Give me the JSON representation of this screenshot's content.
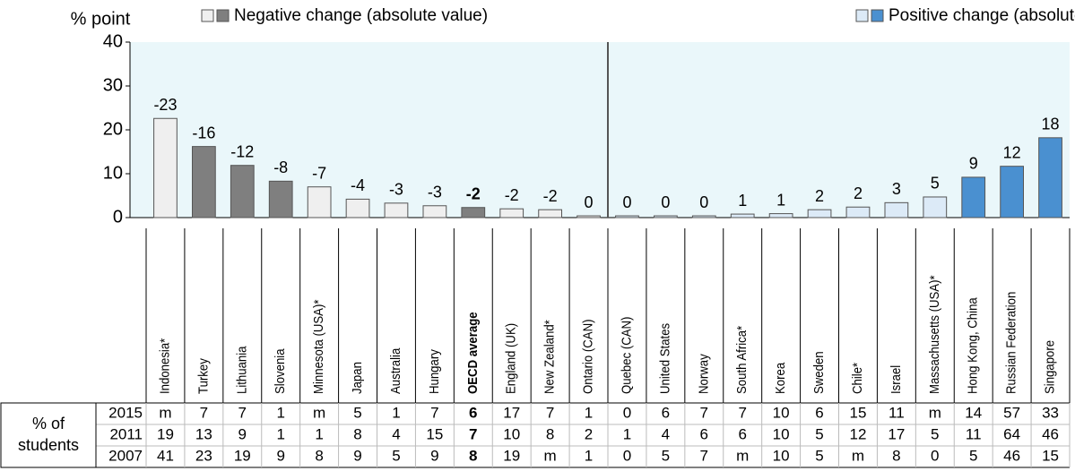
{
  "chart_data": {
    "type": "bar",
    "y_label": "% point",
    "legend": [
      {
        "name": "Negative change (absolute value)",
        "colors": [
          "#efefef",
          "#7f7f7f"
        ]
      },
      {
        "name": "Positive change (absolute value)",
        "colors": [
          "#dceaf7",
          "#4a90d0"
        ]
      }
    ],
    "categories": [
      "Indonesia*",
      "Turkey",
      "Lithuania",
      "Slovenia",
      "Minnesota (USA)*",
      "Japan",
      "Australia",
      "Hungary",
      "OECD average",
      "England (UK)",
      "New Zealand*",
      "Ontario (CAN)",
      "Quebec (CAN)",
      "United States",
      "Norway",
      "South Africa*",
      "Korea",
      "Sweden",
      "Chile*",
      "Israel",
      "Massachusetts (USA)*",
      "Hong Kong, China",
      "Russian Federation",
      "Singapore"
    ],
    "values": [
      22.6,
      16.2,
      11.9,
      8.3,
      7.0,
      4.2,
      3.3,
      2.7,
      2.3,
      2.0,
      1.8,
      0.4,
      0.4,
      0.4,
      0.4,
      0.8,
      0.9,
      1.8,
      2.4,
      3.4,
      4.7,
      9.2,
      11.7,
      18.2
    ],
    "value_labels": [
      "-23",
      "-16",
      "-12",
      "-8",
      "-7",
      "-4",
      "-3",
      "-3",
      "-2",
      "-2",
      "-2",
      "0",
      "0",
      "0",
      "0",
      "1",
      "1",
      "2",
      "2",
      "3",
      "5",
      "9",
      "12",
      "18"
    ],
    "colors": [
      "#efefef",
      "#7f7f7f",
      "#7f7f7f",
      "#7f7f7f",
      "#efefef",
      "#efefef",
      "#efefef",
      "#efefef",
      "#7f7f7f",
      "#efefef",
      "#efefef",
      "#efefef",
      "#dceaf7",
      "#dceaf7",
      "#dceaf7",
      "#dceaf7",
      "#dceaf7",
      "#dceaf7",
      "#dceaf7",
      "#dceaf7",
      "#dceaf7",
      "#4a90d0",
      "#4a90d0",
      "#4a90d0"
    ],
    "highlight": 8,
    "ylim": [
      0,
      40
    ],
    "yticks": [
      0,
      10,
      20,
      30,
      40
    ],
    "background": "#eaf7fa"
  },
  "table": {
    "row_header": "% of students",
    "years": [
      "2015",
      "2011",
      "2007"
    ],
    "rows": [
      [
        "m",
        7,
        7,
        1,
        "m",
        5,
        1,
        7,
        6,
        17,
        7,
        1,
        0,
        6,
        7,
        7,
        10,
        6,
        15,
        11,
        "m",
        14,
        57,
        33
      ],
      [
        19,
        13,
        9,
        1,
        1,
        8,
        4,
        15,
        7,
        10,
        8,
        2,
        1,
        4,
        6,
        6,
        10,
        5,
        12,
        17,
        5,
        11,
        64,
        46
      ],
      [
        41,
        23,
        19,
        9,
        8,
        9,
        5,
        9,
        8,
        19,
        "m",
        1,
        0,
        5,
        7,
        "m",
        10,
        5,
        "m",
        8,
        0,
        5,
        46,
        15
      ]
    ]
  }
}
